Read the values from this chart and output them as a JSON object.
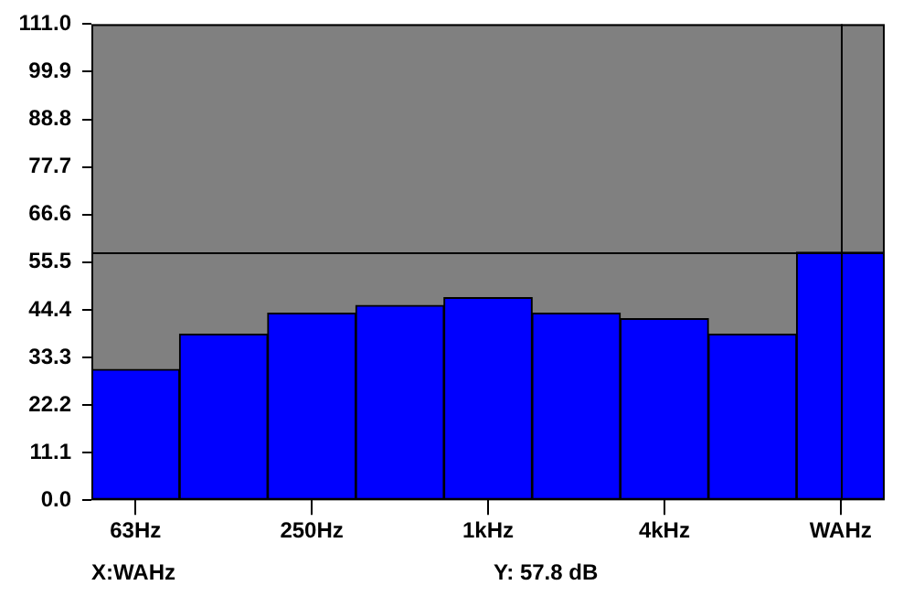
{
  "chart_data": {
    "type": "bar",
    "categories": [
      "63Hz",
      null,
      "250Hz",
      null,
      "1kHz",
      null,
      "4kHz",
      null,
      "WAHz"
    ],
    "series": [
      {
        "color": "#0000ff",
        "values": [
          30.5,
          38.7,
          43.6,
          45.4,
          47.2,
          43.6,
          42.3,
          38.7,
          57.8
        ]
      }
    ],
    "ylim": [
      0,
      111
    ],
    "yticks": [
      {
        "value": 0,
        "label": "0.0"
      },
      11.1,
      22.2,
      33.3,
      44.4,
      55.5,
      66.6,
      77.7,
      88.8,
      99.9,
      {
        "value": 111,
        "label": "111.0"
      }
    ],
    "grid": false,
    "legend": false,
    "ref_lines": [
      {
        "axis": "y",
        "value": 57.8,
        "color": "#000000"
      },
      {
        "axis": "x",
        "value": "WAHz",
        "color": "#000000"
      }
    ],
    "annotations": [
      "X:WAHz",
      "Y: 57.8 dB"
    ]
  }
}
